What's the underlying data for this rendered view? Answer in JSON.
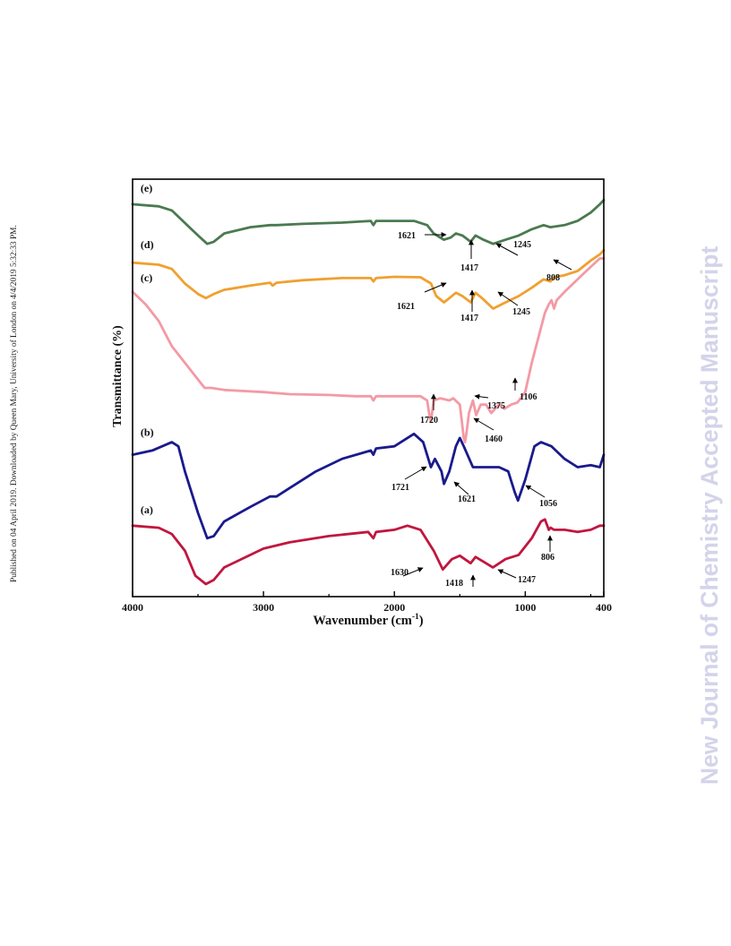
{
  "side_note": "Published on 04 April 2019. Downloaded by Queen Mary, University of London on 4/4/2019 5:32:33 PM.",
  "watermark": "New Journal of Chemistry Accepted Manuscript",
  "chart_data": {
    "type": "line",
    "xlabel": "Wavenumber (cm",
    "xlabel_sup": "-1",
    "xlabel_end": ")",
    "ylabel": "Transmittance (%)",
    "xlim": [
      4000,
      400
    ],
    "x_reversed": true,
    "x_ticks": [
      "4000",
      "3000",
      "2000",
      "1000",
      "400"
    ],
    "y_ticks": false,
    "series": [
      {
        "name": "(a)",
        "color": "#c0173f",
        "points": [
          [
            4000,
            17
          ],
          [
            3800,
            16.5
          ],
          [
            3700,
            15
          ],
          [
            3600,
            11
          ],
          [
            3520,
            5
          ],
          [
            3440,
            3
          ],
          [
            3380,
            4
          ],
          [
            3300,
            7
          ],
          [
            3100,
            10
          ],
          [
            3000,
            11.5
          ],
          [
            2800,
            13
          ],
          [
            2500,
            14.5
          ],
          [
            2200,
            15.5
          ],
          [
            2160,
            14
          ],
          [
            2140,
            15.5
          ],
          [
            2000,
            16
          ],
          [
            1900,
            17
          ],
          [
            1800,
            16
          ],
          [
            1700,
            11
          ],
          [
            1630,
            6.5
          ],
          [
            1560,
            9
          ],
          [
            1500,
            9.8
          ],
          [
            1418,
            8
          ],
          [
            1380,
            9.5
          ],
          [
            1300,
            8
          ],
          [
            1247,
            7
          ],
          [
            1150,
            9
          ],
          [
            1050,
            10
          ],
          [
            950,
            14
          ],
          [
            880,
            18
          ],
          [
            850,
            18.5
          ],
          [
            820,
            16
          ],
          [
            806,
            16.5
          ],
          [
            780,
            16
          ],
          [
            700,
            16
          ],
          [
            600,
            15.5
          ],
          [
            500,
            16
          ],
          [
            430,
            17
          ],
          [
            400,
            17
          ]
        ]
      },
      {
        "name": "(b)",
        "color": "#1a1a8c",
        "points": [
          [
            4000,
            34
          ],
          [
            3850,
            35
          ],
          [
            3700,
            37
          ],
          [
            3650,
            36
          ],
          [
            3600,
            30
          ],
          [
            3500,
            20
          ],
          [
            3430,
            14
          ],
          [
            3380,
            14.5
          ],
          [
            3300,
            18
          ],
          [
            3100,
            21.5
          ],
          [
            2950,
            24
          ],
          [
            2900,
            24
          ],
          [
            2800,
            26
          ],
          [
            2600,
            30
          ],
          [
            2400,
            33
          ],
          [
            2180,
            35
          ],
          [
            2160,
            34
          ],
          [
            2140,
            35.5
          ],
          [
            2000,
            36
          ],
          [
            1900,
            38
          ],
          [
            1850,
            39
          ],
          [
            1780,
            37
          ],
          [
            1721,
            31
          ],
          [
            1690,
            33
          ],
          [
            1640,
            30
          ],
          [
            1621,
            27
          ],
          [
            1580,
            30
          ],
          [
            1530,
            36
          ],
          [
            1500,
            38
          ],
          [
            1470,
            36
          ],
          [
            1400,
            31
          ],
          [
            1300,
            31
          ],
          [
            1200,
            31
          ],
          [
            1130,
            30
          ],
          [
            1080,
            25
          ],
          [
            1056,
            23
          ],
          [
            1000,
            28
          ],
          [
            930,
            36
          ],
          [
            880,
            37
          ],
          [
            800,
            36
          ],
          [
            700,
            33
          ],
          [
            600,
            31
          ],
          [
            500,
            31.5
          ],
          [
            430,
            31
          ],
          [
            400,
            34
          ]
        ]
      },
      {
        "name": "(c)",
        "color": "#f39aa5",
        "points": [
          [
            4000,
            73
          ],
          [
            3900,
            70
          ],
          [
            3800,
            66
          ],
          [
            3700,
            60
          ],
          [
            3600,
            56
          ],
          [
            3500,
            52
          ],
          [
            3450,
            50
          ],
          [
            3400,
            50
          ],
          [
            3300,
            49.5
          ],
          [
            3000,
            49
          ],
          [
            2800,
            48.5
          ],
          [
            2500,
            48.3
          ],
          [
            2300,
            48
          ],
          [
            2180,
            48
          ],
          [
            2160,
            47
          ],
          [
            2140,
            48
          ],
          [
            2000,
            48
          ],
          [
            1800,
            48
          ],
          [
            1750,
            47
          ],
          [
            1730,
            43
          ],
          [
            1720,
            42
          ],
          [
            1700,
            47
          ],
          [
            1650,
            47.5
          ],
          [
            1580,
            47
          ],
          [
            1550,
            47.5
          ],
          [
            1500,
            46
          ],
          [
            1470,
            38
          ],
          [
            1460,
            37
          ],
          [
            1450,
            39
          ],
          [
            1430,
            44
          ],
          [
            1400,
            47
          ],
          [
            1375,
            43.5
          ],
          [
            1340,
            46
          ],
          [
            1300,
            46
          ],
          [
            1260,
            44
          ],
          [
            1200,
            46
          ],
          [
            1160,
            45
          ],
          [
            1106,
            46
          ],
          [
            1060,
            46.5
          ],
          [
            1000,
            49
          ],
          [
            950,
            56
          ],
          [
            900,
            62
          ],
          [
            850,
            68
          ],
          [
            820,
            70
          ],
          [
            800,
            71
          ],
          [
            780,
            69
          ],
          [
            760,
            71
          ],
          [
            700,
            73
          ],
          [
            600,
            76
          ],
          [
            500,
            79
          ],
          [
            430,
            81
          ],
          [
            400,
            81
          ]
        ]
      },
      {
        "name": "(d)",
        "color": "#f0a030",
        "points": [
          [
            4000,
            80
          ],
          [
            3800,
            79.5
          ],
          [
            3700,
            78.5
          ],
          [
            3600,
            75
          ],
          [
            3500,
            72.5
          ],
          [
            3440,
            71.5
          ],
          [
            3380,
            72.5
          ],
          [
            3300,
            73.5
          ],
          [
            3100,
            74.5
          ],
          [
            2950,
            75.2
          ],
          [
            2930,
            74.5
          ],
          [
            2900,
            75.2
          ],
          [
            2700,
            75.8
          ],
          [
            2400,
            76.3
          ],
          [
            2180,
            76.3
          ],
          [
            2160,
            75.5
          ],
          [
            2140,
            76.3
          ],
          [
            2000,
            76.6
          ],
          [
            1800,
            76.5
          ],
          [
            1720,
            75
          ],
          [
            1680,
            72
          ],
          [
            1621,
            70.5
          ],
          [
            1580,
            71.5
          ],
          [
            1530,
            72.8
          ],
          [
            1480,
            72
          ],
          [
            1417,
            70.5
          ],
          [
            1380,
            72.8
          ],
          [
            1330,
            71.5
          ],
          [
            1245,
            69
          ],
          [
            1150,
            70.5
          ],
          [
            1050,
            72
          ],
          [
            950,
            74
          ],
          [
            860,
            76
          ],
          [
            808,
            75.5
          ],
          [
            780,
            76.5
          ],
          [
            700,
            77
          ],
          [
            600,
            78
          ],
          [
            500,
            80.5
          ],
          [
            430,
            82
          ],
          [
            400,
            83
          ]
        ]
      },
      {
        "name": "(e)",
        "color": "#4a7a50",
        "points": [
          [
            4000,
            94
          ],
          [
            3800,
            93.5
          ],
          [
            3700,
            92.5
          ],
          [
            3600,
            89.5
          ],
          [
            3500,
            86.5
          ],
          [
            3430,
            84.5
          ],
          [
            3380,
            85
          ],
          [
            3300,
            87
          ],
          [
            3100,
            88.5
          ],
          [
            2950,
            89
          ],
          [
            2900,
            89
          ],
          [
            2700,
            89.3
          ],
          [
            2400,
            89.6
          ],
          [
            2180,
            90
          ],
          [
            2160,
            89
          ],
          [
            2140,
            90
          ],
          [
            2000,
            90
          ],
          [
            1850,
            90
          ],
          [
            1750,
            89
          ],
          [
            1700,
            87
          ],
          [
            1650,
            86
          ],
          [
            1621,
            85.5
          ],
          [
            1570,
            86
          ],
          [
            1530,
            87
          ],
          [
            1480,
            86.5
          ],
          [
            1417,
            85
          ],
          [
            1380,
            86.5
          ],
          [
            1320,
            85.5
          ],
          [
            1245,
            84.5
          ],
          [
            1150,
            85.5
          ],
          [
            1050,
            86.5
          ],
          [
            950,
            88
          ],
          [
            860,
            89
          ],
          [
            808,
            88.5
          ],
          [
            700,
            89
          ],
          [
            600,
            90
          ],
          [
            500,
            92
          ],
          [
            430,
            94
          ],
          [
            400,
            95
          ]
        ]
      }
    ],
    "labels": [
      {
        "text": "(a)",
        "x": 3980,
        "y": 20
      },
      {
        "text": "(b)",
        "x": 3980,
        "y": 38.5
      },
      {
        "text": "(c)",
        "x": 3980,
        "y": 75.5
      },
      {
        "text": "(d)",
        "x": 3980,
        "y": 83.5
      },
      {
        "text": "(e)",
        "x": 3980,
        "y": 97
      }
    ],
    "annotations": [
      {
        "text": "1630",
        "series": "(a)"
      },
      {
        "text": "1418",
        "series": "(a)"
      },
      {
        "text": "1247",
        "series": "(a)"
      },
      {
        "text": "806",
        "series": "(a)"
      },
      {
        "text": "1721",
        "series": "(b)"
      },
      {
        "text": "1621",
        "series": "(b)"
      },
      {
        "text": "1056",
        "series": "(b)"
      },
      {
        "text": "1720",
        "series": "(c)"
      },
      {
        "text": "1460",
        "series": "(c)"
      },
      {
        "text": "1375",
        "series": "(c)"
      },
      {
        "text": "1106",
        "series": "(c)"
      },
      {
        "text": "1621",
        "series": "(d)"
      },
      {
        "text": "1417",
        "series": "(d)"
      },
      {
        "text": "1245",
        "series": "(d)"
      },
      {
        "text": "808",
        "series": "(d)"
      },
      {
        "text": "1621",
        "series": "(e)"
      },
      {
        "text": "1417",
        "series": "(e)"
      },
      {
        "text": "1245",
        "series": "(e)"
      }
    ]
  }
}
